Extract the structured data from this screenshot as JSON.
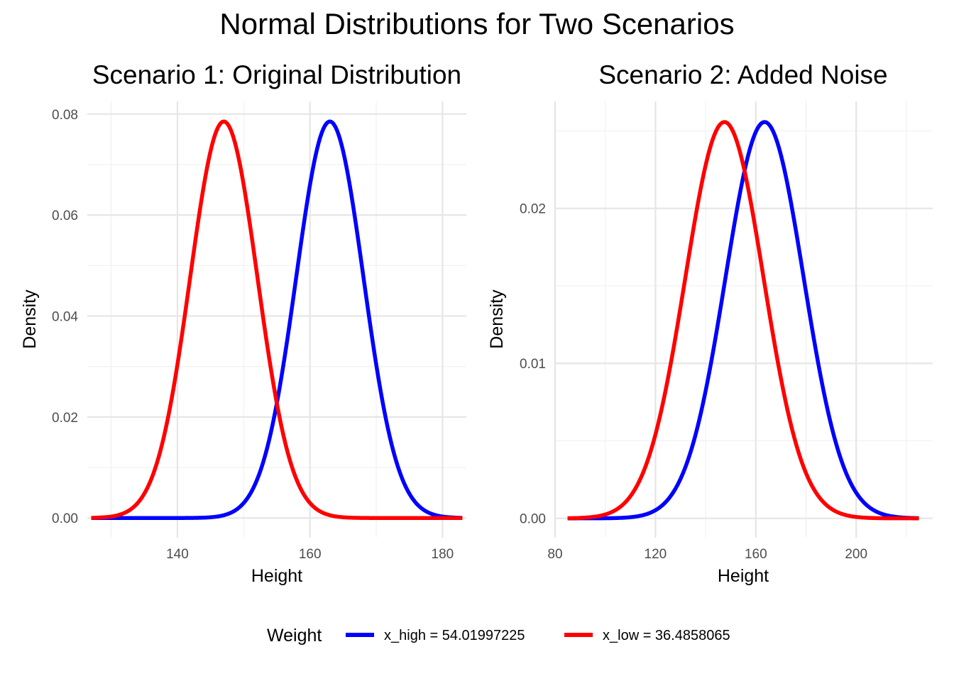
{
  "title": "Normal Distributions for Two Scenarios",
  "legend": {
    "title": "Weight",
    "placement": "bottom",
    "entries": [
      {
        "label": "x_high = 54.01997225",
        "color": "#0000ff"
      },
      {
        "label": "x_low = 36.4858065",
        "color": "#ff0000"
      }
    ]
  },
  "chart_data": [
    {
      "type": "line",
      "title": "Scenario 1: Original Distribution",
      "xlabel": "Height",
      "ylabel": "Density",
      "xlim": [
        126.4,
        183.6
      ],
      "ylim": [
        -0.0039,
        0.0825
      ],
      "x_major_ticks": [
        140,
        160,
        180
      ],
      "x_minor_ticks": [
        130,
        150,
        170
      ],
      "y_major_ticks": [
        0,
        0.02,
        0.04,
        0.06,
        0.08
      ],
      "y_minor_ticks": [
        0.01,
        0.03,
        0.05,
        0.07
      ],
      "x_tick_labels": [
        "140",
        "160",
        "180"
      ],
      "y_tick_labels": [
        "0.00",
        "0.02",
        "0.04",
        "0.06",
        "0.08"
      ],
      "grid": true,
      "series": [
        {
          "color": "#0000ff",
          "distribution": "normal",
          "mean": 163.0,
          "sd": 5.08,
          "x_range": [
            127,
            183
          ]
        },
        {
          "color": "#ff0000",
          "distribution": "normal",
          "mean": 147.0,
          "sd": 5.08,
          "x_range": [
            127,
            183
          ]
        }
      ]
    },
    {
      "type": "line",
      "title": "Scenario 2: Added Noise",
      "xlabel": "Height",
      "ylabel": "Density",
      "xlim": [
        80,
        230.5
      ],
      "ylim": [
        -0.00125,
        0.0269
      ],
      "x_major_ticks": [
        80,
        120,
        160,
        200
      ],
      "x_minor_ticks": [
        100,
        140,
        180,
        220
      ],
      "y_major_ticks": [
        0,
        0.01,
        0.02
      ],
      "y_minor_ticks": [
        0.005,
        0.015,
        0.025
      ],
      "x_tick_labels": [
        "80",
        "120",
        "160",
        "200"
      ],
      "y_tick_labels": [
        "0.00",
        "0.01",
        "0.02"
      ],
      "grid": true,
      "series": [
        {
          "color": "#0000ff",
          "distribution": "normal",
          "mean": 163.5,
          "sd": 15.6,
          "x_range": [
            85,
            225
          ]
        },
        {
          "color": "#ff0000",
          "distribution": "normal",
          "mean": 147.5,
          "sd": 15.6,
          "x_range": [
            85,
            225
          ]
        }
      ]
    }
  ]
}
